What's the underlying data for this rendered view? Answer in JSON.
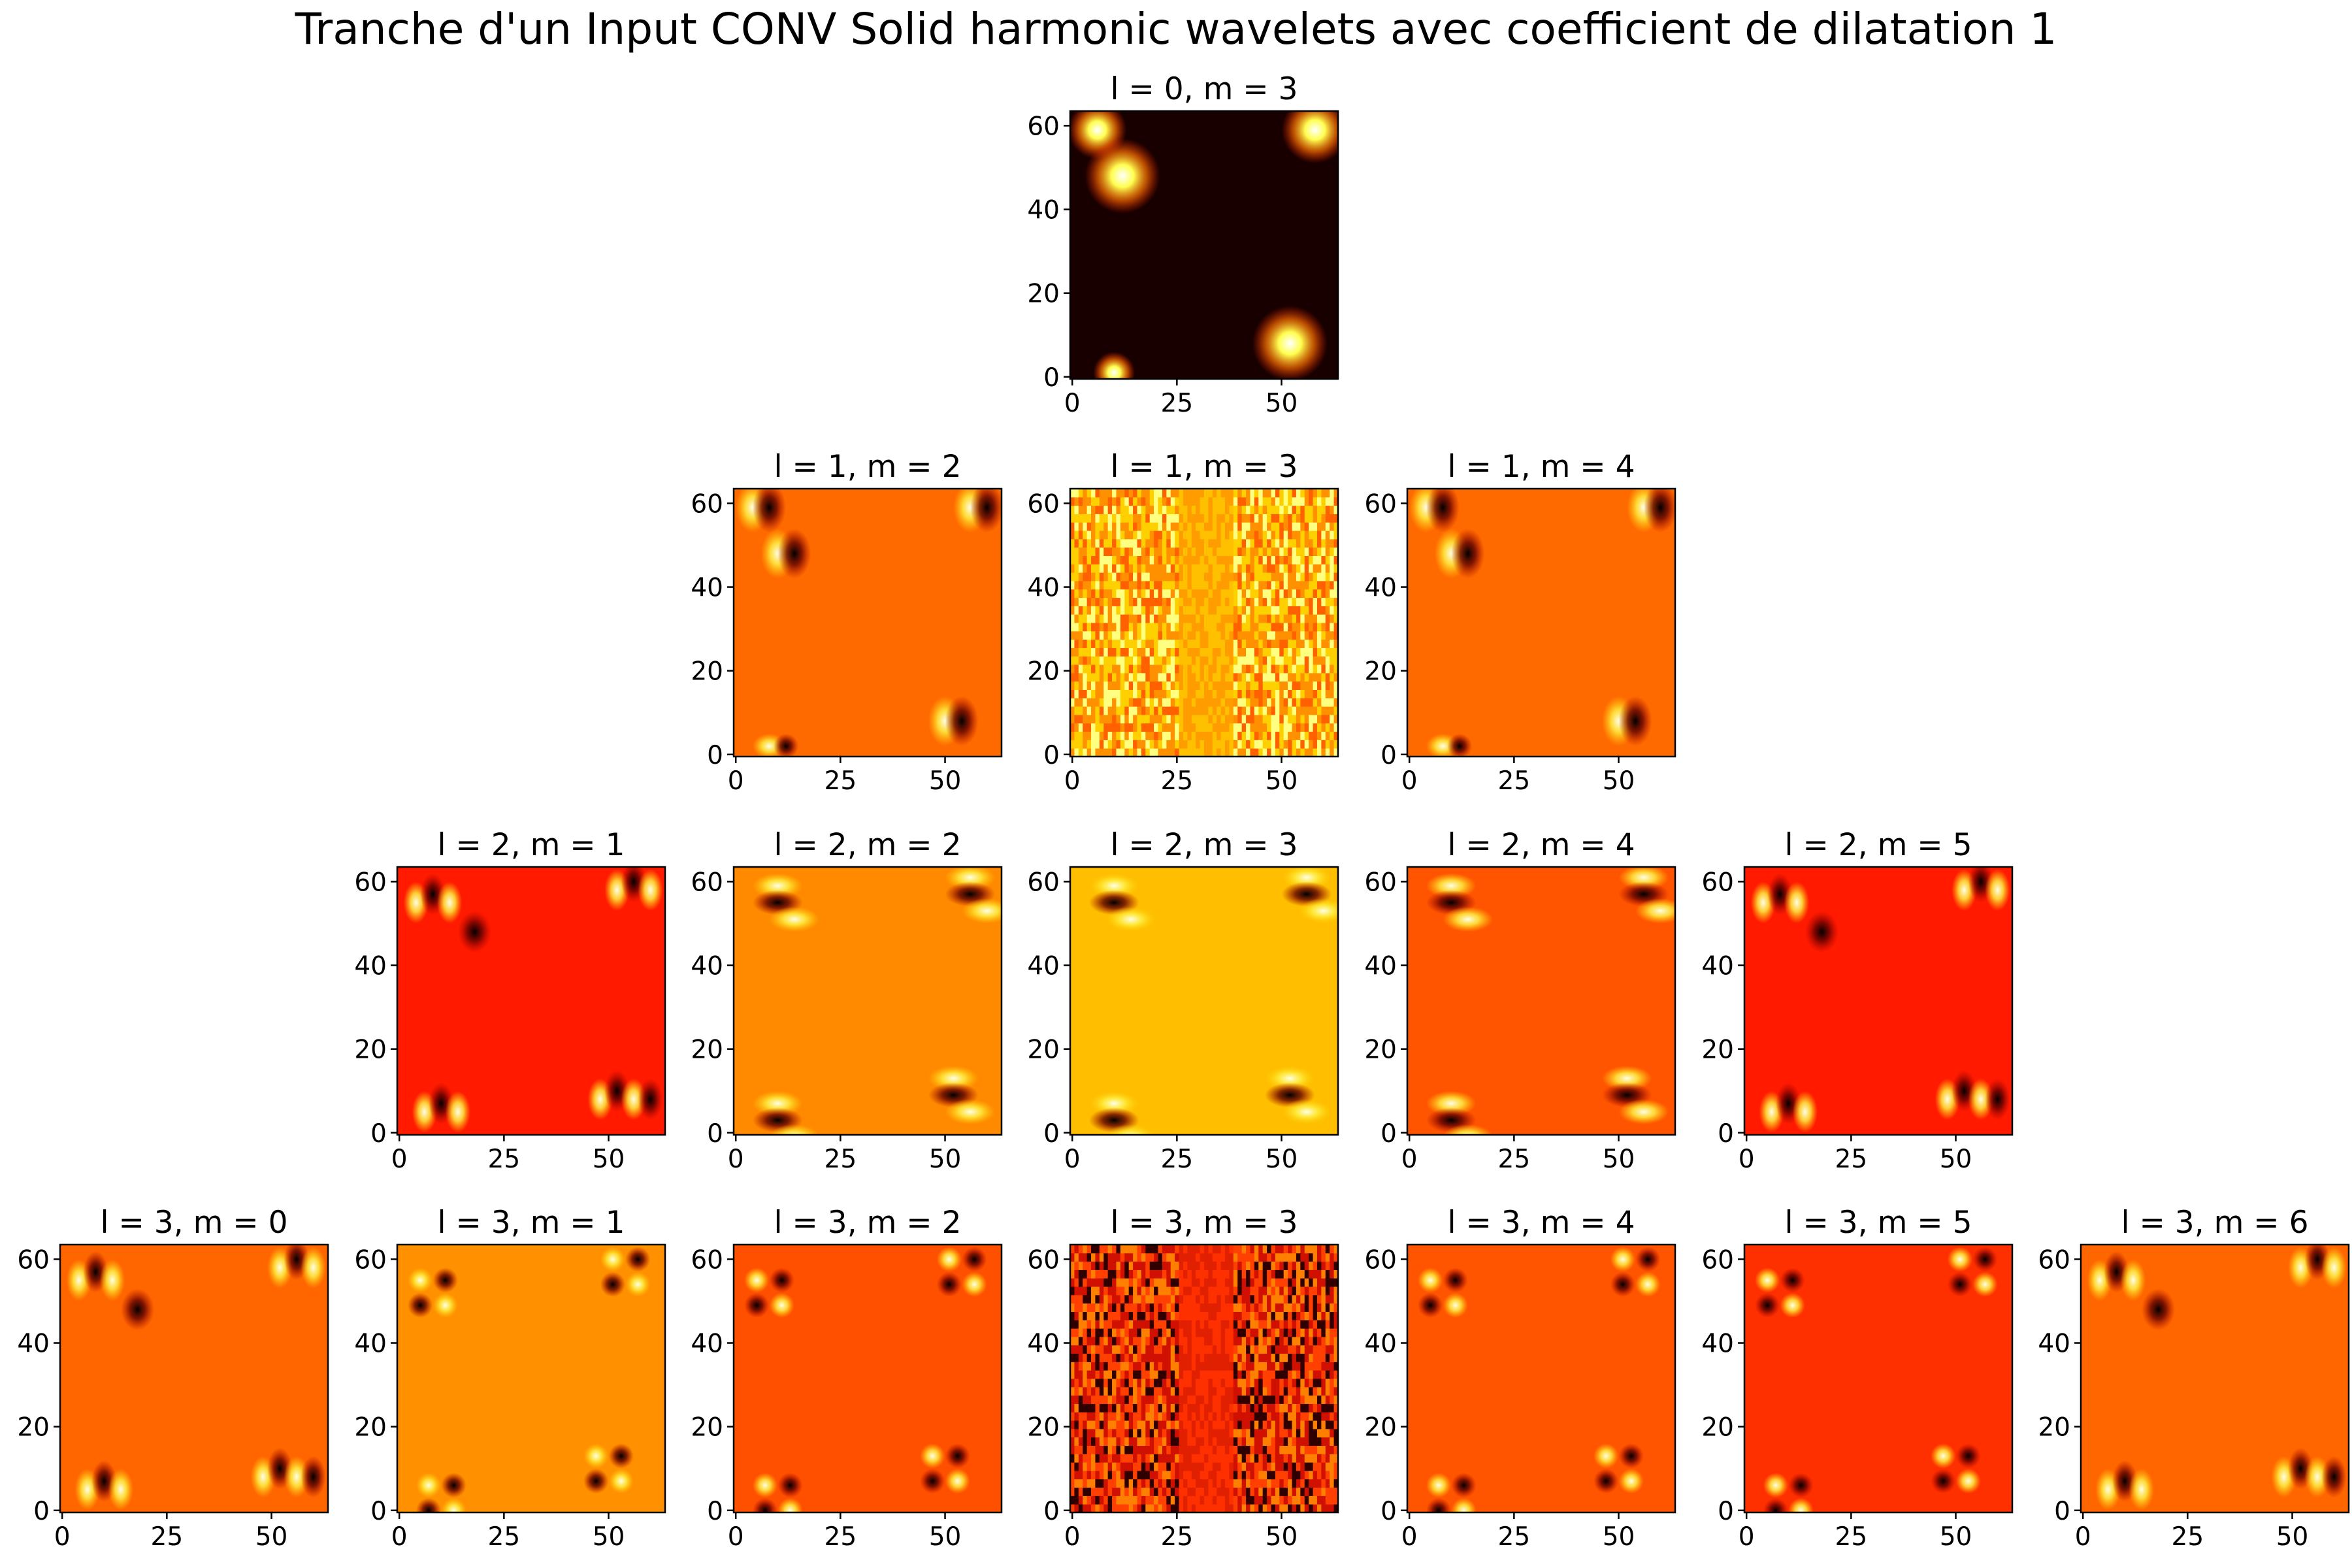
{
  "chart_data": {
    "type": "heatmap",
    "title": "Tranche d'un Input CONV Solid harmonic wavelets avec coefficient de dilatation 1",
    "colormap": "hot",
    "grid": false,
    "xlim": [
      0,
      63
    ],
    "ylim": [
      0,
      63
    ],
    "xticks": [
      "0",
      "25",
      "50"
    ],
    "yticks": [
      "0",
      "20",
      "40",
      "60"
    ],
    "panels": [
      {
        "title": "l = 0, m = 3",
        "row": 0,
        "col": 3,
        "pattern": "blobs",
        "background": "#180000"
      },
      {
        "title": "l = 1, m = 2",
        "row": 1,
        "col": 2,
        "pattern": "dipole",
        "background": "#ff6a00"
      },
      {
        "title": "l = 1, m = 3",
        "row": 1,
        "col": 3,
        "pattern": "noise",
        "background": "#ffb000"
      },
      {
        "title": "l = 1, m = 4",
        "row": 1,
        "col": 4,
        "pattern": "dipole",
        "background": "#ff6a00"
      },
      {
        "title": "l = 2, m = 1",
        "row": 2,
        "col": 1,
        "pattern": "quad",
        "background": "#ff1a00"
      },
      {
        "title": "l = 2, m = 2",
        "row": 2,
        "col": 2,
        "pattern": "horiz",
        "background": "#ff8a00"
      },
      {
        "title": "l = 2, m = 3",
        "row": 2,
        "col": 3,
        "pattern": "horiz",
        "background": "#ffbe00"
      },
      {
        "title": "l = 2, m = 4",
        "row": 2,
        "col": 4,
        "pattern": "horiz",
        "background": "#ff5500"
      },
      {
        "title": "l = 2, m = 5",
        "row": 2,
        "col": 5,
        "pattern": "quad",
        "background": "#ff1a00"
      },
      {
        "title": "l = 3, m = 0",
        "row": 3,
        "col": 0,
        "pattern": "quad",
        "background": "#ff6600"
      },
      {
        "title": "l = 3, m = 1",
        "row": 3,
        "col": 1,
        "pattern": "clover",
        "background": "#ff9000"
      },
      {
        "title": "l = 3, m = 2",
        "row": 3,
        "col": 2,
        "pattern": "clover",
        "background": "#ff5000"
      },
      {
        "title": "l = 3, m = 3",
        "row": 3,
        "col": 3,
        "pattern": "noise",
        "background": "#e82000"
      },
      {
        "title": "l = 3, m = 4",
        "row": 3,
        "col": 4,
        "pattern": "clover",
        "background": "#ff5500"
      },
      {
        "title": "l = 3, m = 5",
        "row": 3,
        "col": 5,
        "pattern": "clover",
        "background": "#ff3000"
      },
      {
        "title": "l = 3, m = 6",
        "row": 3,
        "col": 6,
        "pattern": "quad",
        "background": "#ff6600"
      }
    ]
  }
}
